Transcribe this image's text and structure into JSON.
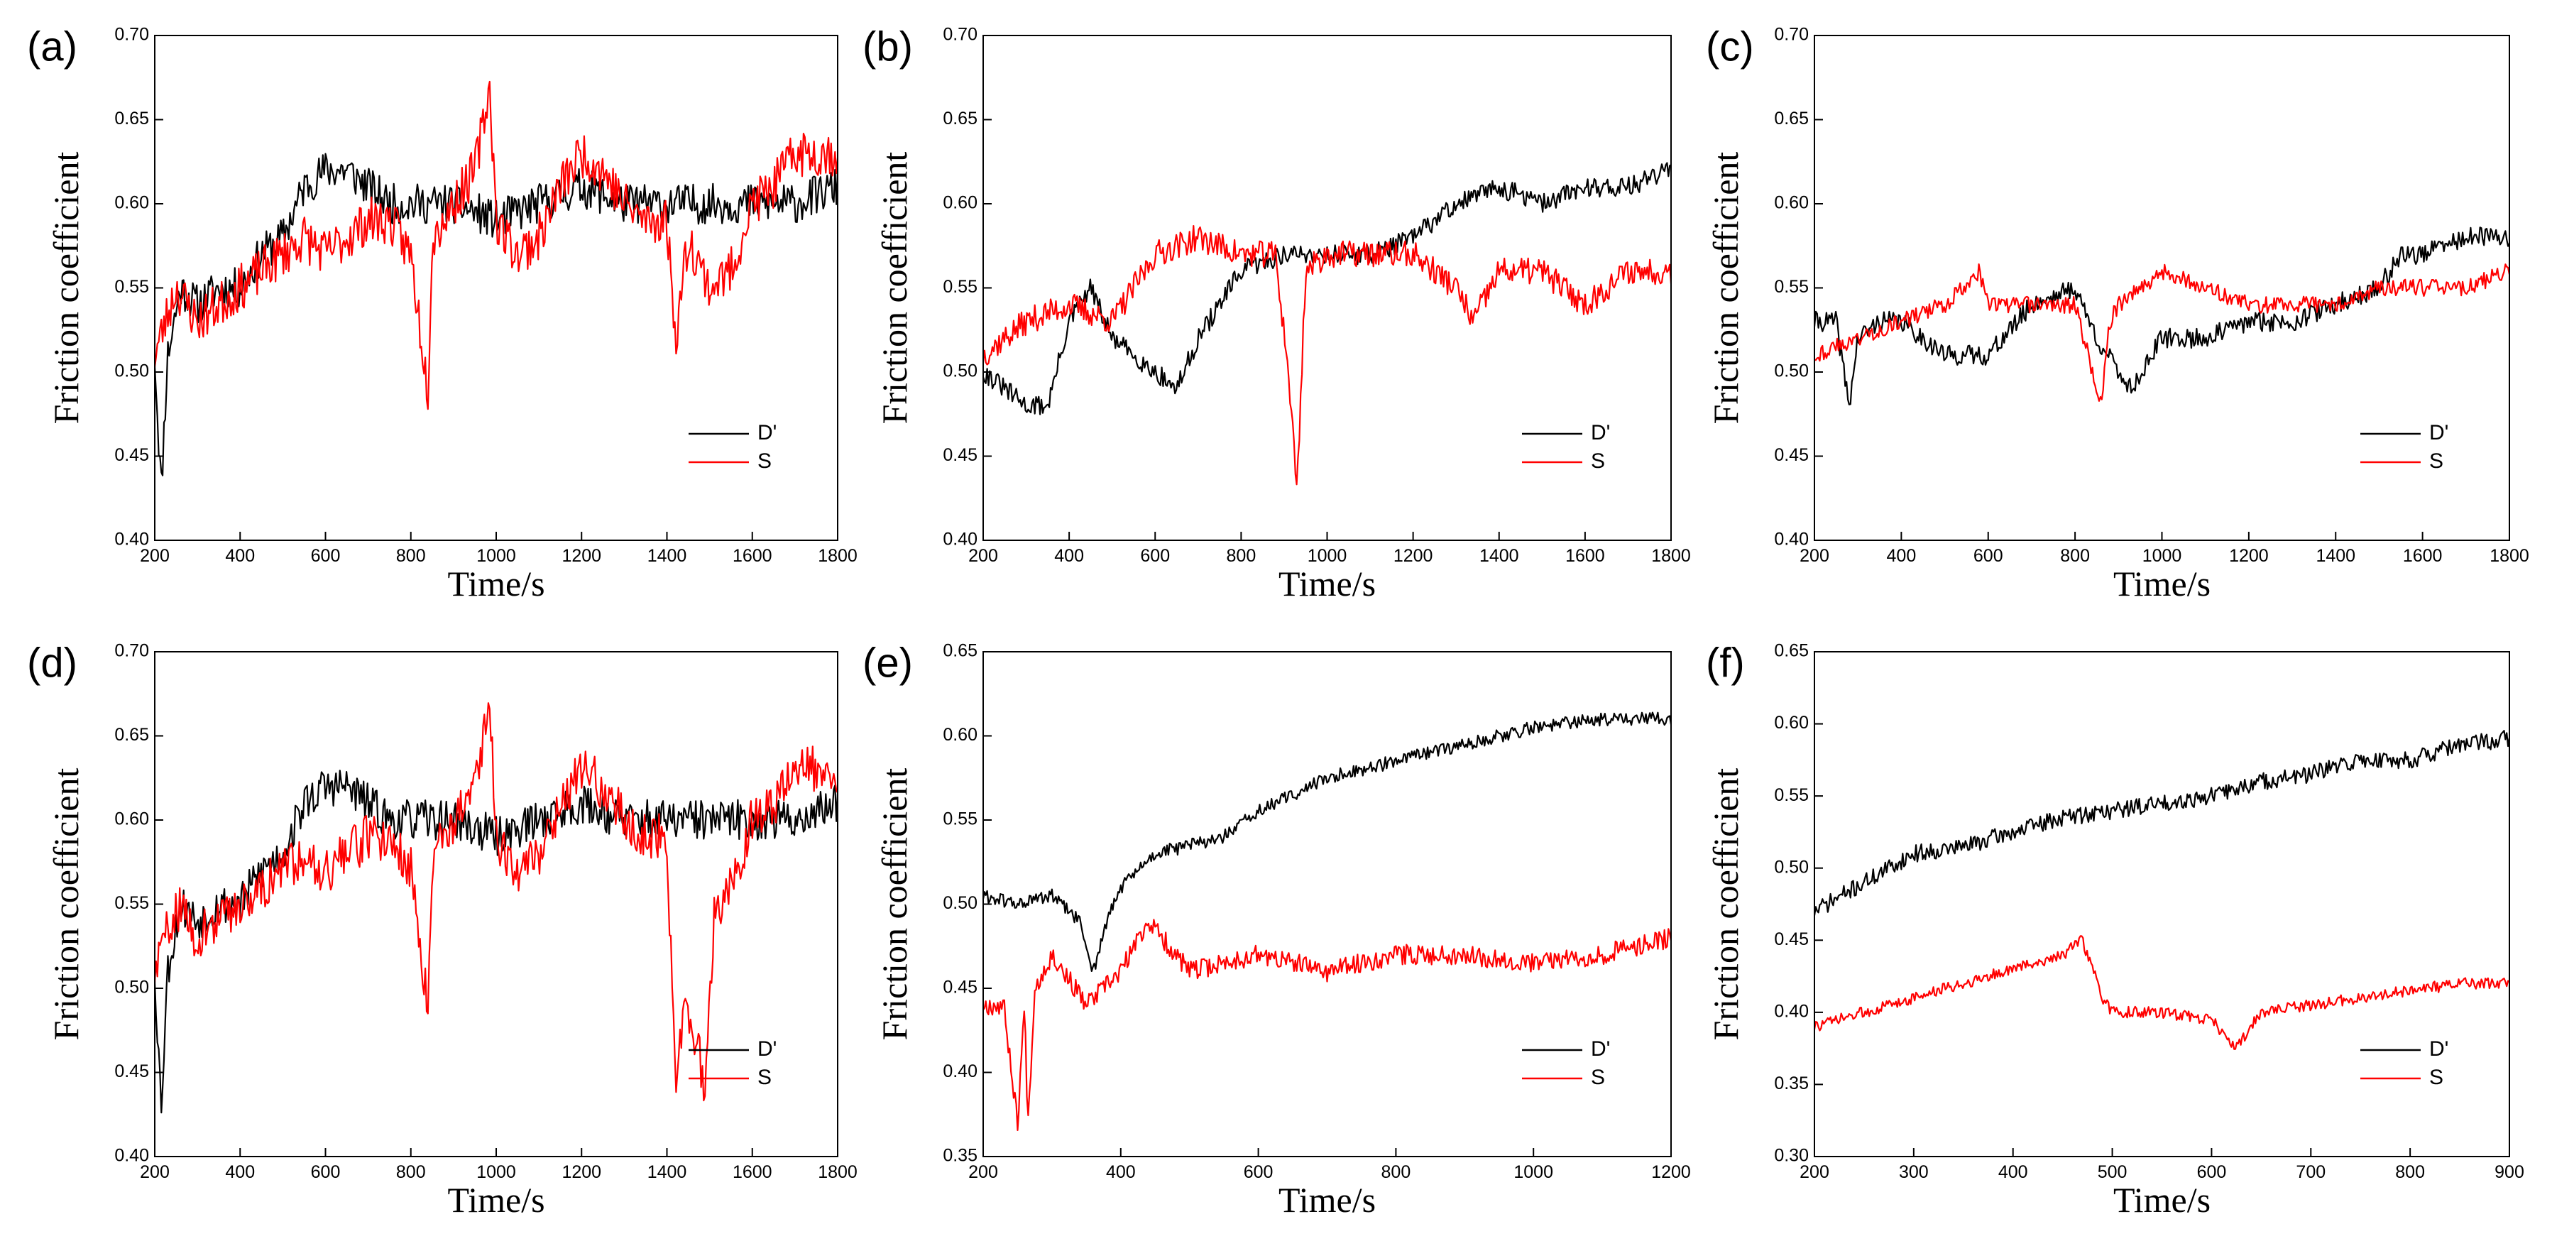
{
  "colors": {
    "D": "#000000",
    "S": "#ff0000"
  },
  "chart_data": [
    {
      "panel": "(a)",
      "type": "line",
      "xlabel": "Time/s",
      "ylabel": "Friction coefficient",
      "xlim": [
        200,
        1800
      ],
      "ylim": [
        0.4,
        0.7
      ],
      "xticks": [
        "200",
        "400",
        "600",
        "800",
        "1000",
        "1200",
        "1400",
        "1600",
        "1800"
      ],
      "yticks": [
        "0.40",
        "0.45",
        "0.50",
        "0.55",
        "0.60",
        "0.65",
        "0.70"
      ],
      "legend": [
        "D'",
        "S"
      ],
      "series": [
        {
          "name": "D'",
          "color": "#000000",
          "noise": 0.012,
          "seed": 11,
          "x": [
            200,
            215,
            230,
            260,
            300,
            350,
            400,
            450,
            500,
            550,
            600,
            650,
            700,
            750,
            800,
            900,
            1000,
            1100,
            1200,
            1300,
            1400,
            1500,
            1600,
            1700,
            1800
          ],
          "y": [
            0.51,
            0.43,
            0.51,
            0.55,
            0.54,
            0.55,
            0.55,
            0.57,
            0.58,
            0.61,
            0.62,
            0.62,
            0.61,
            0.6,
            0.6,
            0.6,
            0.59,
            0.6,
            0.61,
            0.6,
            0.6,
            0.6,
            0.6,
            0.6,
            0.61
          ]
        },
        {
          "name": "S",
          "color": "#ff0000",
          "noise": 0.014,
          "seed": 23,
          "x": [
            200,
            250,
            300,
            350,
            400,
            450,
            500,
            550,
            600,
            650,
            700,
            750,
            800,
            840,
            850,
            900,
            950,
            985,
            1000,
            1050,
            1100,
            1150,
            1200,
            1250,
            1300,
            1350,
            1400,
            1420,
            1450,
            1500,
            1550,
            1600,
            1650,
            1700,
            1750,
            1800
          ],
          "y": [
            0.51,
            0.55,
            0.53,
            0.54,
            0.55,
            0.56,
            0.57,
            0.58,
            0.57,
            0.58,
            0.59,
            0.59,
            0.57,
            0.49,
            0.58,
            0.6,
            0.62,
            0.67,
            0.59,
            0.57,
            0.58,
            0.61,
            0.63,
            0.62,
            0.6,
            0.59,
            0.59,
            0.52,
            0.58,
            0.55,
            0.56,
            0.6,
            0.61,
            0.63,
            0.63,
            0.63
          ]
        }
      ]
    },
    {
      "panel": "(b)",
      "type": "line",
      "xlabel": "Time/s",
      "ylabel": "Friction coefficient",
      "xlim": [
        200,
        1800
      ],
      "ylim": [
        0.4,
        0.7
      ],
      "xticks": [
        "200",
        "400",
        "600",
        "800",
        "1000",
        "1200",
        "1400",
        "1600",
        "1800"
      ],
      "yticks": [
        "0.40",
        "0.45",
        "0.50",
        "0.55",
        "0.60",
        "0.65",
        "0.70"
      ],
      "legend": [
        "D'",
        "S"
      ],
      "series": [
        {
          "name": "D'",
          "color": "#000000",
          "noise": 0.006,
          "seed": 31,
          "x": [
            200,
            250,
            300,
            350,
            400,
            450,
            500,
            550,
            600,
            650,
            700,
            750,
            800,
            900,
            1000,
            1100,
            1200,
            1300,
            1400,
            1500,
            1600,
            1700,
            1800
          ],
          "y": [
            0.5,
            0.49,
            0.48,
            0.48,
            0.53,
            0.55,
            0.52,
            0.51,
            0.5,
            0.49,
            0.52,
            0.54,
            0.56,
            0.57,
            0.57,
            0.57,
            0.58,
            0.6,
            0.61,
            0.6,
            0.61,
            0.61,
            0.62
          ]
        },
        {
          "name": "S",
          "color": "#ff0000",
          "noise": 0.008,
          "seed": 37,
          "x": [
            200,
            300,
            400,
            500,
            600,
            700,
            800,
            880,
            910,
            930,
            950,
            1000,
            1100,
            1200,
            1300,
            1340,
            1400,
            1500,
            1600,
            1700,
            1800
          ],
          "y": [
            0.51,
            0.53,
            0.54,
            0.53,
            0.57,
            0.58,
            0.57,
            0.57,
            0.5,
            0.43,
            0.56,
            0.57,
            0.57,
            0.57,
            0.55,
            0.53,
            0.56,
            0.56,
            0.54,
            0.56,
            0.56
          ]
        }
      ]
    },
    {
      "panel": "(c)",
      "type": "line",
      "xlabel": "Time/s",
      "ylabel": "Friction coefficient",
      "xlim": [
        200,
        1800
      ],
      "ylim": [
        0.4,
        0.7
      ],
      "xticks": [
        "200",
        "400",
        "600",
        "800",
        "1000",
        "1200",
        "1400",
        "1600",
        "1800"
      ],
      "yticks": [
        "0.40",
        "0.45",
        "0.50",
        "0.55",
        "0.60",
        "0.65",
        "0.70"
      ],
      "legend": [
        "D'",
        "S"
      ],
      "series": [
        {
          "name": "D'",
          "color": "#000000",
          "noise": 0.006,
          "seed": 41,
          "x": [
            200,
            250,
            280,
            300,
            350,
            400,
            450,
            500,
            600,
            700,
            800,
            850,
            900,
            930,
            1000,
            1100,
            1200,
            1300,
            1400,
            1500,
            1550,
            1600,
            1700,
            1800
          ],
          "y": [
            0.53,
            0.53,
            0.48,
            0.52,
            0.53,
            0.53,
            0.52,
            0.51,
            0.51,
            0.54,
            0.55,
            0.52,
            0.5,
            0.49,
            0.52,
            0.52,
            0.53,
            0.53,
            0.54,
            0.55,
            0.57,
            0.57,
            0.58,
            0.58
          ]
        },
        {
          "name": "S",
          "color": "#ff0000",
          "noise": 0.005,
          "seed": 43,
          "x": [
            200,
            300,
            400,
            500,
            580,
            600,
            700,
            800,
            860,
            880,
            900,
            1000,
            1100,
            1200,
            1300,
            1400,
            1500,
            1600,
            1700,
            1800
          ],
          "y": [
            0.51,
            0.52,
            0.53,
            0.54,
            0.56,
            0.54,
            0.54,
            0.54,
            0.48,
            0.53,
            0.54,
            0.56,
            0.55,
            0.54,
            0.54,
            0.54,
            0.55,
            0.55,
            0.55,
            0.56
          ]
        }
      ]
    },
    {
      "panel": "(d)",
      "type": "line",
      "xlabel": "Time/s",
      "ylabel": "Friction coefficient",
      "xlim": [
        200,
        1800
      ],
      "ylim": [
        0.4,
        0.7
      ],
      "xticks": [
        "200",
        "400",
        "600",
        "800",
        "1000",
        "1200",
        "1400",
        "1600",
        "1800"
      ],
      "yticks": [
        "0.40",
        "0.45",
        "0.50",
        "0.55",
        "0.60",
        "0.65",
        "0.70"
      ],
      "legend": [
        "D'",
        "S"
      ],
      "series": [
        {
          "name": "D'",
          "color": "#000000",
          "noise": 0.012,
          "seed": 53,
          "x": [
            200,
            215,
            230,
            260,
            300,
            350,
            400,
            450,
            500,
            550,
            600,
            650,
            700,
            750,
            800,
            900,
            1000,
            1100,
            1200,
            1300,
            1400,
            1500,
            1600,
            1700,
            1800
          ],
          "y": [
            0.51,
            0.43,
            0.51,
            0.55,
            0.54,
            0.55,
            0.55,
            0.57,
            0.58,
            0.61,
            0.62,
            0.62,
            0.61,
            0.6,
            0.6,
            0.6,
            0.59,
            0.6,
            0.61,
            0.6,
            0.6,
            0.6,
            0.6,
            0.6,
            0.61
          ]
        },
        {
          "name": "S",
          "color": "#ff0000",
          "noise": 0.014,
          "seed": 59,
          "x": [
            200,
            250,
            300,
            350,
            400,
            450,
            500,
            550,
            600,
            650,
            700,
            750,
            800,
            840,
            850,
            900,
            950,
            985,
            1000,
            1050,
            1100,
            1150,
            1200,
            1250,
            1300,
            1350,
            1400,
            1420,
            1440,
            1460,
            1490,
            1510,
            1550,
            1600,
            1650,
            1700,
            1750,
            1800
          ],
          "y": [
            0.51,
            0.55,
            0.53,
            0.54,
            0.55,
            0.56,
            0.57,
            0.58,
            0.57,
            0.58,
            0.59,
            0.59,
            0.57,
            0.49,
            0.58,
            0.6,
            0.62,
            0.67,
            0.59,
            0.57,
            0.58,
            0.61,
            0.63,
            0.62,
            0.6,
            0.59,
            0.59,
            0.44,
            0.49,
            0.48,
            0.44,
            0.54,
            0.56,
            0.6,
            0.61,
            0.63,
            0.63,
            0.63
          ]
        }
      ]
    },
    {
      "panel": "(e)",
      "type": "line",
      "xlabel": "Time/s",
      "ylabel": "Friction coefficient",
      "xlim": [
        200,
        1200
      ],
      "ylim": [
        0.35,
        0.65
      ],
      "xticks": [
        "200",
        "400",
        "600",
        "800",
        "1000",
        "1200"
      ],
      "yticks": [
        "0.35",
        "0.40",
        "0.45",
        "0.50",
        "0.55",
        "0.60",
        "0.65"
      ],
      "legend": [
        "D'",
        "S"
      ],
      "series": [
        {
          "name": "D'",
          "color": "#000000",
          "noise": 0.004,
          "seed": 61,
          "x": [
            200,
            250,
            300,
            340,
            360,
            380,
            400,
            450,
            500,
            550,
            600,
            700,
            800,
            900,
            1000,
            1100,
            1200
          ],
          "y": [
            0.505,
            0.5,
            0.505,
            0.49,
            0.46,
            0.49,
            0.51,
            0.53,
            0.535,
            0.54,
            0.555,
            0.575,
            0.585,
            0.595,
            0.605,
            0.61,
            0.61
          ]
        },
        {
          "name": "S",
          "color": "#ff0000",
          "noise": 0.006,
          "seed": 67,
          "x": [
            200,
            230,
            250,
            260,
            265,
            275,
            300,
            350,
            400,
            440,
            500,
            600,
            700,
            800,
            900,
            1000,
            1100,
            1200
          ],
          "y": [
            0.44,
            0.44,
            0.37,
            0.44,
            0.37,
            0.45,
            0.47,
            0.44,
            0.46,
            0.49,
            0.46,
            0.47,
            0.46,
            0.47,
            0.47,
            0.465,
            0.47,
            0.48
          ]
        }
      ]
    },
    {
      "panel": "(f)",
      "type": "line",
      "xlabel": "Time/s",
      "ylabel": "Friction coefficient",
      "xlim": [
        200,
        900
      ],
      "ylim": [
        0.3,
        0.65
      ],
      "xticks": [
        "200",
        "300",
        "400",
        "500",
        "600",
        "700",
        "800",
        "900"
      ],
      "yticks": [
        "0.30",
        "0.35",
        "0.40",
        "0.45",
        "0.50",
        "0.55",
        "0.60",
        "0.65"
      ],
      "legend": [
        "D'",
        "S"
      ],
      "series": [
        {
          "name": "D'",
          "color": "#000000",
          "noise": 0.006,
          "seed": 71,
          "x": [
            200,
            250,
            300,
            350,
            400,
            450,
            500,
            550,
            600,
            650,
            700,
            750,
            800,
            850,
            900
          ],
          "y": [
            0.47,
            0.49,
            0.51,
            0.515,
            0.525,
            0.535,
            0.54,
            0.545,
            0.55,
            0.56,
            0.565,
            0.575,
            0.575,
            0.585,
            0.59
          ]
        },
        {
          "name": "S",
          "color": "#ff0000",
          "noise": 0.004,
          "seed": 73,
          "x": [
            200,
            250,
            300,
            350,
            400,
            450,
            470,
            490,
            500,
            550,
            600,
            625,
            650,
            700,
            750,
            800,
            850,
            900
          ],
          "y": [
            0.39,
            0.4,
            0.41,
            0.42,
            0.43,
            0.44,
            0.45,
            0.41,
            0.4,
            0.4,
            0.395,
            0.375,
            0.4,
            0.405,
            0.41,
            0.415,
            0.42,
            0.42
          ]
        }
      ]
    }
  ]
}
